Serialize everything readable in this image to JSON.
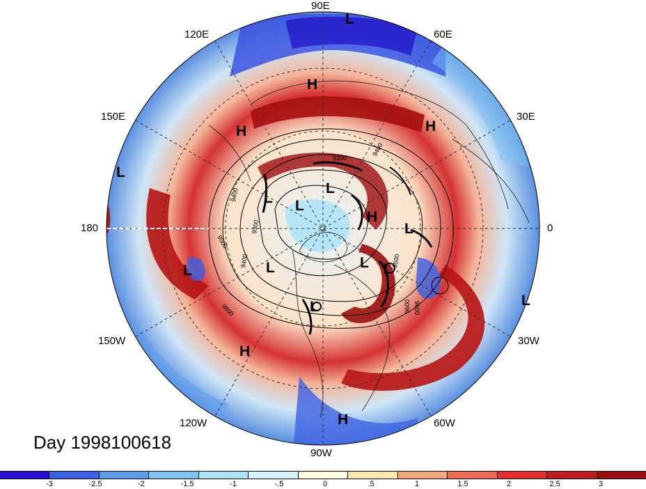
{
  "map": {
    "projection": "north-polar-stereographic",
    "longitude_labels": [
      "90E",
      "60E",
      "30E",
      "0",
      "30W",
      "60W",
      "90W",
      "120W",
      "150W",
      "180",
      "150E",
      "120E"
    ],
    "pressure_highs_lows": [
      "L",
      "H",
      "H",
      "H",
      "L",
      "L",
      "L",
      "L",
      "L",
      "H",
      "L",
      "L",
      "L",
      "L",
      "L",
      "L",
      "H",
      "H"
    ],
    "contour_labels": [
      "9200",
      "9400",
      "9400",
      "9300",
      "9500",
      "9400",
      "9600",
      "9500",
      "9600",
      "9800"
    ]
  },
  "title": {
    "day_label": "Day 1998100618"
  },
  "colorbar": {
    "colors": [
      "#2b0fd6",
      "#3a62e6",
      "#5a9fec",
      "#7cc4f4",
      "#a8e4f8",
      "#d7f4fb",
      "#fdfce1",
      "#fde7a8",
      "#f4a878",
      "#ef6b52",
      "#e52e2e",
      "#c11c1c",
      "#9c0d0d"
    ],
    "tick_labels": [
      "-3",
      "-2.5",
      "-2",
      "-1.5",
      "-1",
      "-.5",
      "0",
      ".5",
      "1",
      "1.5",
      "2",
      "2.5",
      "3"
    ]
  }
}
